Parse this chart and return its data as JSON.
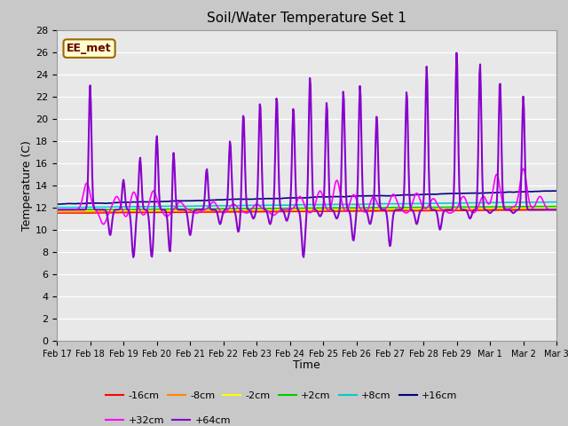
{
  "title": "Soil/Water Temperature Set 1",
  "xlabel": "Time",
  "ylabel": "Temperature (C)",
  "ylim": [
    0,
    28
  ],
  "yticks": [
    0,
    2,
    4,
    6,
    8,
    10,
    12,
    14,
    16,
    18,
    20,
    22,
    24,
    26,
    28
  ],
  "annotation": "EE_met",
  "series": {
    "-16cm": {
      "color": "#ff0000",
      "lw": 1.2
    },
    "-8cm": {
      "color": "#ff8800",
      "lw": 1.2
    },
    "-2cm": {
      "color": "#ffff00",
      "lw": 1.2
    },
    "+2cm": {
      "color": "#00cc00",
      "lw": 1.2
    },
    "+8cm": {
      "color": "#00cccc",
      "lw": 1.2
    },
    "+16cm": {
      "color": "#000080",
      "lw": 1.2
    },
    "+32cm": {
      "color": "#ff00ff",
      "lw": 1.2
    },
    "+64cm": {
      "color": "#8800cc",
      "lw": 1.5
    }
  },
  "x_labels": [
    "Feb 17",
    "Feb 18",
    "Feb 19",
    "Feb 20",
    "Feb 21",
    "Feb 22",
    "Feb 23",
    "Feb 24",
    "Feb 25",
    "Feb 26",
    "Feb 27",
    "Feb 28",
    "Feb 29",
    "Mar 1",
    "Mar 2",
    "Mar 3"
  ],
  "legend_row1": [
    "-16cm",
    "-8cm",
    "-2cm",
    "+2cm",
    "+8cm",
    "+16cm"
  ],
  "legend_row2": [
    "+32cm",
    "+64cm"
  ]
}
